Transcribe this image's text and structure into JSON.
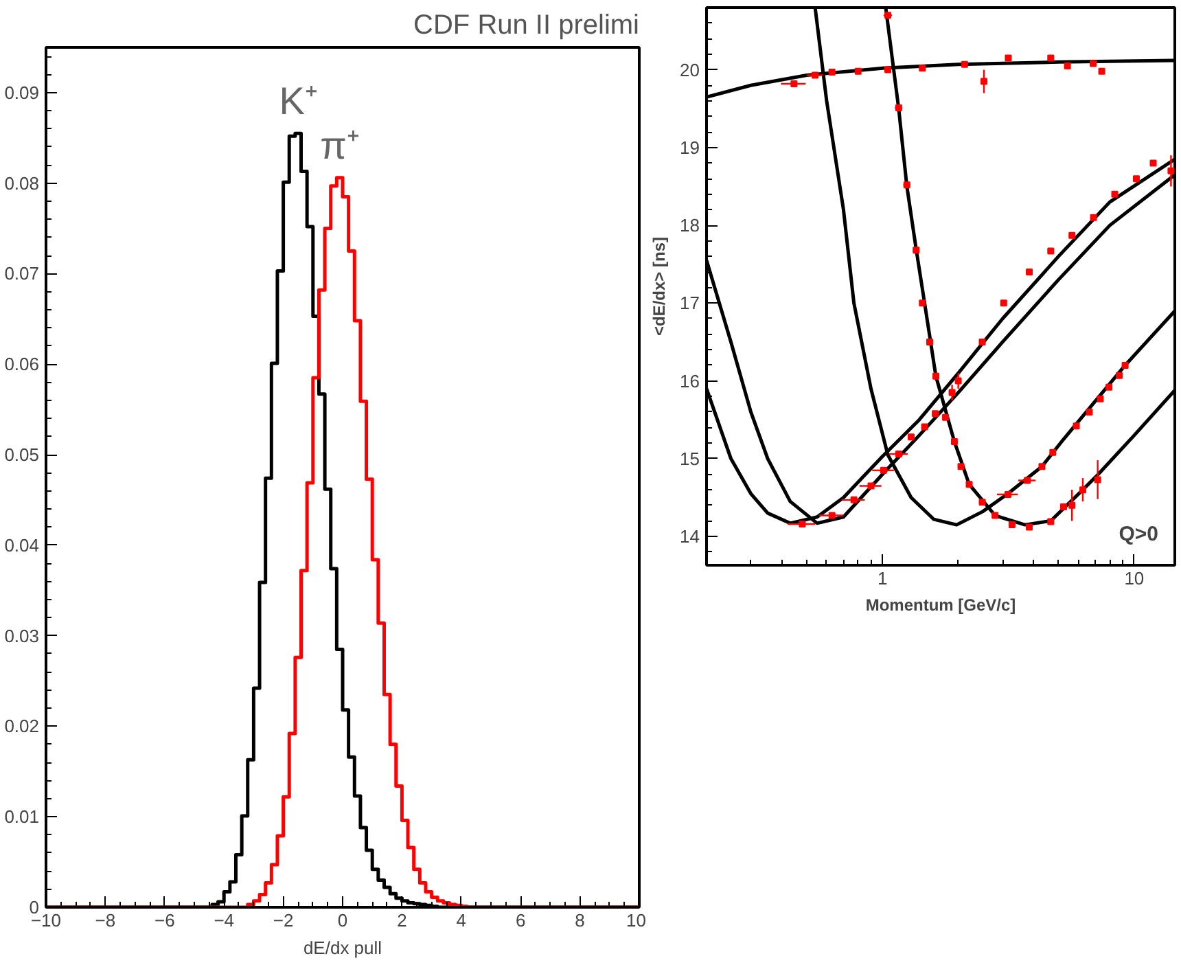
{
  "chart_data": [
    {
      "type": "histogram",
      "title": "CDF Run II prelimi",
      "xlabel": "dE/dx pull",
      "bins": [
        -10,
        -9.8,
        -9.6,
        -9.4,
        -9.2,
        -9,
        -8.8,
        -8.6,
        -8.4,
        -8.2,
        -8,
        -7.8,
        -7.6,
        -7.4,
        -7.2,
        -7,
        -6.8,
        -6.6,
        -6.4,
        -6.2,
        -6,
        -5.8,
        -5.6,
        -5.4,
        -5.2,
        -5,
        -4.8,
        -4.6,
        -4.4,
        -4.2,
        -4,
        -3.8,
        -3.6,
        -3.4,
        -3.2,
        -3,
        -2.8,
        -2.6,
        -2.4,
        -2.2,
        -2,
        -1.8,
        -1.6,
        -1.4,
        -1.2,
        -1,
        -0.8,
        -0.6,
        -0.4,
        -0.2,
        0,
        0.2,
        0.4,
        0.6,
        0.8,
        1,
        1.2,
        1.4,
        1.6,
        1.8,
        2,
        2.2,
        2.4,
        2.6,
        2.8,
        3,
        3.2,
        3.4,
        3.6,
        3.8,
        4,
        4.2,
        4.4,
        4.6,
        4.8,
        5,
        5.2,
        5.4,
        5.6,
        5.8,
        6,
        6.2,
        6.4,
        6.6,
        6.8,
        7,
        7.2,
        7.4,
        7.6,
        7.8,
        8,
        8.2,
        8.4,
        8.6,
        8.8,
        9,
        9.2,
        9.4,
        9.6,
        9.8,
        10
      ],
      "series": [
        {
          "name": "K⁺",
          "color": "#000000",
          "values": [
            0,
            0,
            0,
            0,
            0,
            0,
            0,
            0,
            0,
            0,
            0,
            0,
            0,
            0,
            0,
            0,
            0,
            0,
            0,
            0,
            0,
            0,
            0,
            0,
            0,
            0,
            0,
            0,
            0.0003,
            0.0006,
            0.0017,
            0.0028,
            0.0058,
            0.0101,
            0.0163,
            0.0242,
            0.0359,
            0.0474,
            0.0601,
            0.0703,
            0.0801,
            0.0852,
            0.0855,
            0.0813,
            0.0752,
            0.0653,
            0.0567,
            0.0462,
            0.0374,
            0.0285,
            0.0218,
            0.0166,
            0.0123,
            0.0088,
            0.0063,
            0.0042,
            0.003,
            0.0022,
            0.0015,
            0.001,
            0.0007,
            0.0005,
            0.0004,
            0.0003,
            0.0002,
            0.0001,
            0,
            0,
            0,
            0,
            0,
            0,
            0,
            0,
            0,
            0,
            0,
            0,
            0,
            0,
            0,
            0,
            0,
            0,
            0,
            0,
            0,
            0,
            0,
            0,
            0,
            0,
            0,
            0,
            0,
            0,
            0,
            0,
            0,
            0
          ]
        },
        {
          "name": "π⁺",
          "color": "#ff0000",
          "values": [
            0,
            0,
            0,
            0,
            0,
            0,
            0,
            0,
            0,
            0,
            0,
            0,
            0,
            0,
            0,
            0,
            0,
            0,
            0,
            0,
            0,
            0,
            0,
            0,
            0,
            0,
            0,
            0,
            0,
            0,
            0,
            0,
            0,
            0,
            0.0003,
            0.0007,
            0.0014,
            0.0027,
            0.0047,
            0.0079,
            0.0122,
            0.0192,
            0.0276,
            0.0372,
            0.0469,
            0.0585,
            0.0682,
            0.075,
            0.0797,
            0.0806,
            0.0785,
            0.0725,
            0.0648,
            0.0559,
            0.0473,
            0.0384,
            0.0314,
            0.0235,
            0.018,
            0.0134,
            0.0096,
            0.0066,
            0.0042,
            0.0027,
            0.0017,
            0.0011,
            0.0007,
            0.0005,
            0.0003,
            0.0002,
            0.0001,
            0,
            0,
            0,
            0,
            0,
            0,
            0,
            0,
            0,
            0,
            0,
            0,
            0,
            0,
            0,
            0,
            0,
            0,
            0,
            0,
            0,
            0,
            0,
            0,
            0,
            0,
            0,
            0,
            0
          ]
        }
      ],
      "xlim": [
        -10,
        10
      ],
      "ylim": [
        0,
        0.095
      ],
      "xticks": [
        -10,
        -8,
        -6,
        -4,
        -2,
        0,
        2,
        4,
        6,
        8,
        10
      ],
      "yticks": [
        0,
        0.01,
        0.02,
        0.03,
        0.04,
        0.05,
        0.06,
        0.07,
        0.08,
        0.09
      ]
    },
    {
      "type": "scatter",
      "ylabel": "<dE/dx> [ns]",
      "xlabel": "Momentum [GeV/c]",
      "log": "x",
      "annotations": [
        "Q>0"
      ],
      "xlim": [
        0.2,
        14.5
      ],
      "ylim": [
        13.63,
        20.8
      ],
      "xticks": [
        1,
        10
      ],
      "yticks": [
        14,
        15,
        16,
        17,
        18,
        19,
        20
      ],
      "series": [
        {
          "type": "line",
          "color": "#000000",
          "x": [
            0.2,
            0.3,
            0.5,
            1,
            2,
            5,
            14.5
          ],
          "values": [
            19.65,
            19.8,
            19.93,
            20.02,
            20.07,
            20.1,
            20.12
          ]
        },
        {
          "type": "line",
          "color": "#000000",
          "x": [
            0.2,
            0.25,
            0.3,
            0.35,
            0.43,
            0.55,
            0.7,
            1,
            1.4,
            2,
            3,
            5,
            8,
            14.5
          ],
          "values": [
            15.9,
            15.0,
            14.55,
            14.3,
            14.17,
            14.25,
            14.5,
            15.03,
            15.5,
            16.1,
            16.8,
            17.6,
            18.3,
            18.85
          ]
        },
        {
          "type": "line",
          "color": "#000000",
          "x": [
            0.2,
            0.25,
            0.3,
            0.35,
            0.43,
            0.55,
            0.7,
            1,
            1.4,
            2,
            3,
            5,
            8,
            14.5
          ],
          "values": [
            17.55,
            16.5,
            15.6,
            15.0,
            14.45,
            14.17,
            14.25,
            14.8,
            15.3,
            15.85,
            16.5,
            17.3,
            18.0,
            18.65
          ]
        },
        {
          "type": "line",
          "color": "#000000",
          "x": [
            0.54,
            0.6,
            0.7,
            0.77,
            0.9,
            1.05,
            1.3,
            1.6,
            1.97,
            2.5,
            3.15,
            4.3,
            5.24,
            9.2,
            14.5
          ],
          "values": [
            20.8,
            19.6,
            18.2,
            17.0,
            15.9,
            15.05,
            14.5,
            14.22,
            14.15,
            14.32,
            14.55,
            14.9,
            15.25,
            16.2,
            16.9
          ]
        },
        {
          "type": "line",
          "color": "#000000",
          "x": [
            1.03,
            1.16,
            1.25,
            1.36,
            1.47,
            1.63,
            1.93,
            2.21,
            2.8,
            3.68,
            4.66,
            6.25,
            7.2,
            10,
            14.5
          ],
          "values": [
            20.8,
            19.5,
            18.5,
            17.7,
            17.0,
            16.06,
            15.22,
            14.67,
            14.27,
            14.15,
            14.2,
            14.6,
            14.8,
            15.3,
            15.88
          ]
        },
        {
          "type": "scatter",
          "color": "#ff0000",
          "marker": "square",
          "x": [
            0.445,
            0.54,
            0.63,
            0.8,
            1.05,
            1.44,
            2.12,
            2.53,
            3.16,
            4.66,
            5.43,
            6.87,
            7.43,
            1.05,
            1.16,
            1.25,
            1.36,
            1.44,
            1.54,
            1.63,
            1.78,
            1.93,
            2.05,
            2.21,
            2.49,
            2.8,
            3.27,
            3.83,
            4.66,
            5.24,
            5.66,
            6.25,
            7.16,
            3.15,
            3.76,
            4.3,
            4.75,
            5.89,
            6.63,
            7.33,
            7.94,
            8.72,
            9.2,
            0.48,
            0.63,
            0.77,
            0.9,
            1.01,
            1.16,
            1.3,
            1.47,
            1.62,
            1.89,
            2.0,
            2.49,
            3.03,
            3.83,
            4.66,
            5.66,
            6.89,
            8.37,
            10.2,
            11.9,
            14.0
          ],
          "values": [
            19.82,
            19.93,
            19.97,
            19.98,
            20.0,
            20.02,
            20.07,
            19.85,
            20.15,
            20.15,
            20.05,
            20.08,
            19.98,
            20.7,
            19.51,
            18.52,
            17.68,
            17.0,
            16.5,
            16.06,
            15.53,
            15.22,
            14.9,
            14.67,
            14.44,
            14.27,
            14.15,
            14.12,
            14.19,
            14.38,
            14.4,
            14.6,
            14.73,
            14.54,
            14.72,
            14.9,
            15.08,
            15.42,
            15.6,
            15.77,
            15.92,
            16.07,
            16.2,
            14.16,
            14.27,
            14.47,
            14.65,
            14.85,
            15.06,
            15.28,
            15.41,
            15.58,
            15.85,
            16.0,
            16.5,
            17.0,
            17.4,
            17.67,
            17.87,
            18.1,
            18.4,
            18.6,
            18.8,
            18.7
          ],
          "errors": [
            null,
            null,
            null,
            null,
            null,
            null,
            null,
            0.15,
            null,
            null,
            null,
            null,
            null,
            null,
            null,
            null,
            null,
            null,
            null,
            null,
            null,
            null,
            null,
            null,
            null,
            null,
            null,
            null,
            null,
            null,
            0.2,
            0.15,
            0.25,
            null,
            null,
            null,
            null,
            null,
            null,
            null,
            null,
            null,
            null,
            null,
            null,
            null,
            null,
            null,
            null,
            null,
            null,
            null,
            0.1,
            0.1,
            null,
            null,
            null,
            null,
            null,
            null,
            null,
            null,
            null,
            0.2
          ],
          "xerrors": [
            0.05,
            0.04,
            null,
            null,
            null,
            null,
            null,
            null,
            null,
            null,
            null,
            null,
            null,
            0.04,
            0.04,
            0.04,
            0.04,
            0.04,
            null,
            null,
            null,
            null,
            null,
            null,
            null,
            null,
            null,
            null,
            null,
            null,
            null,
            null,
            null,
            0.3,
            0.3,
            null,
            null,
            null,
            null,
            null,
            null,
            null,
            null,
            0.06,
            0.07,
            0.08,
            0.09,
            0.1,
            0.1,
            null,
            null,
            null,
            null,
            null,
            null,
            null,
            null,
            null,
            null,
            null,
            null,
            null,
            null,
            null
          ]
        }
      ]
    }
  ]
}
